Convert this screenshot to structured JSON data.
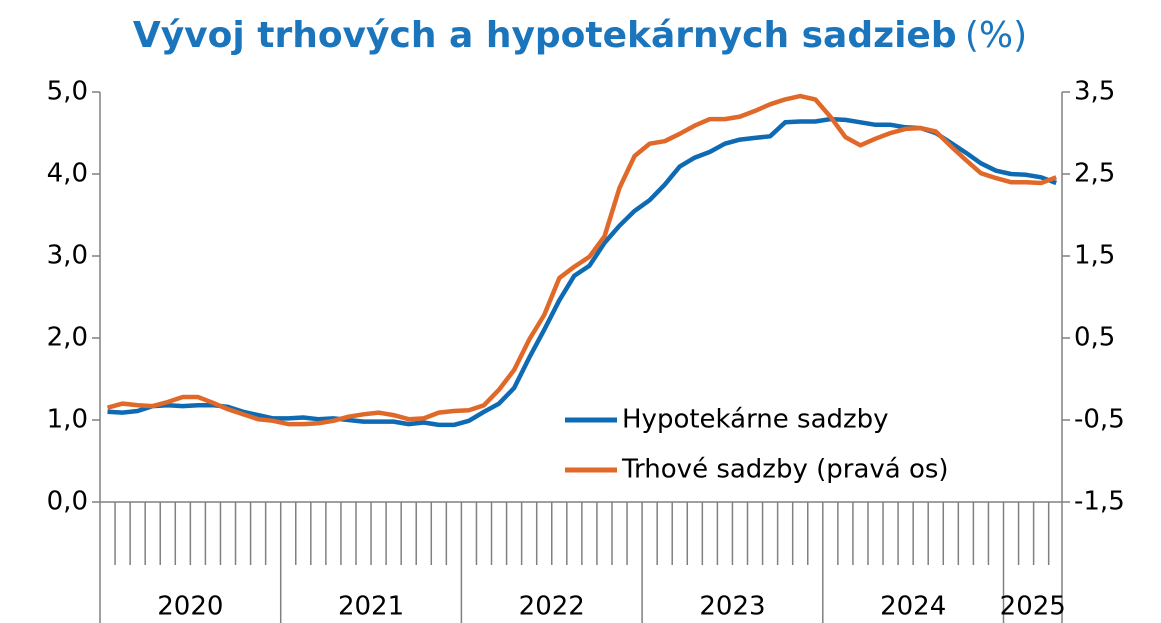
{
  "chart_data": {
    "type": "line",
    "title": "Vývoj trhových a hypotekárnych sadzieb",
    "title_unit": "(%)",
    "categories": [
      null,
      null,
      null,
      null,
      null,
      null,
      null,
      null,
      null,
      null,
      null,
      null,
      null,
      null,
      null,
      null,
      null,
      null,
      null,
      null,
      null,
      null,
      null,
      null,
      null,
      null,
      null,
      null,
      null,
      null,
      null,
      null,
      null,
      null,
      null,
      null,
      null,
      null,
      null,
      null,
      null,
      null,
      null,
      null,
      null,
      null,
      null,
      null,
      null,
      null,
      null,
      null,
      null,
      null,
      null,
      null,
      null,
      null,
      null,
      null,
      null,
      null,
      null,
      null
    ],
    "year_labels": [
      "2020",
      "2021",
      "2022",
      "2023",
      "2024",
      "2025"
    ],
    "ylim": [
      0,
      5
    ],
    "yticks": [
      {
        "value": 0,
        "label": "0,0"
      },
      {
        "value": 1,
        "label": "1,0"
      },
      {
        "value": 2,
        "label": "2,0"
      },
      {
        "value": 3,
        "label": "3,0"
      },
      {
        "value": 4,
        "label": "4,0"
      },
      {
        "value": 5,
        "label": "5,0"
      }
    ],
    "y2lim": [
      -1.5,
      3.5
    ],
    "y2ticks": [
      {
        "value": -1.5,
        "label": "-1,5"
      },
      {
        "value": -0.5,
        "label": "-0,5"
      },
      {
        "value": 0.5,
        "label": "0,5"
      },
      {
        "value": 1.5,
        "label": "1,5"
      },
      {
        "value": 2.5,
        "label": "2,5"
      },
      {
        "value": 3.5,
        "label": "3,5"
      }
    ],
    "legend": "lower right",
    "series": [
      {
        "name": "Hypotekárne sadzby",
        "color": "#0e6bb3",
        "axis": "y",
        "values": [
          1.1,
          1.09,
          1.11,
          1.17,
          1.18,
          1.17,
          1.18,
          1.18,
          1.16,
          1.1,
          1.06,
          1.02,
          1.02,
          1.03,
          1.01,
          1.02,
          1.0,
          0.98,
          0.98,
          0.98,
          0.95,
          0.97,
          0.94,
          0.94,
          0.99,
          1.1,
          1.2,
          1.39,
          1.76,
          2.1,
          2.46,
          2.76,
          2.88,
          3.16,
          3.37,
          3.55,
          3.68,
          3.87,
          4.09,
          4.2,
          4.27,
          4.37,
          4.42,
          4.44,
          4.46,
          4.63,
          4.64,
          4.64,
          4.67,
          4.66,
          4.63,
          4.6,
          4.6,
          4.57,
          4.56,
          4.5,
          4.38,
          4.26,
          4.13,
          4.04,
          4.0,
          3.99,
          3.96,
          3.89
        ]
      },
      {
        "name": "Trhové sadzby (pravá os)",
        "color": "#e0692a",
        "axis": "y2",
        "values": [
          -0.35,
          -0.3,
          -0.32,
          -0.33,
          -0.28,
          -0.22,
          -0.22,
          -0.29,
          -0.37,
          -0.43,
          -0.49,
          -0.51,
          -0.55,
          -0.55,
          -0.54,
          -0.51,
          -0.46,
          -0.43,
          -0.41,
          -0.44,
          -0.49,
          -0.48,
          -0.41,
          -0.39,
          -0.38,
          -0.32,
          -0.13,
          0.11,
          0.48,
          0.78,
          1.23,
          1.37,
          1.49,
          1.74,
          2.33,
          2.72,
          2.87,
          2.9,
          2.99,
          3.09,
          3.17,
          3.17,
          3.2,
          3.27,
          3.35,
          3.41,
          3.45,
          3.41,
          3.2,
          2.95,
          2.85,
          2.93,
          3.0,
          3.05,
          3.06,
          3.02,
          2.84,
          2.67,
          2.51,
          2.45,
          2.4,
          2.4,
          2.39,
          2.46
        ]
      }
    ]
  }
}
